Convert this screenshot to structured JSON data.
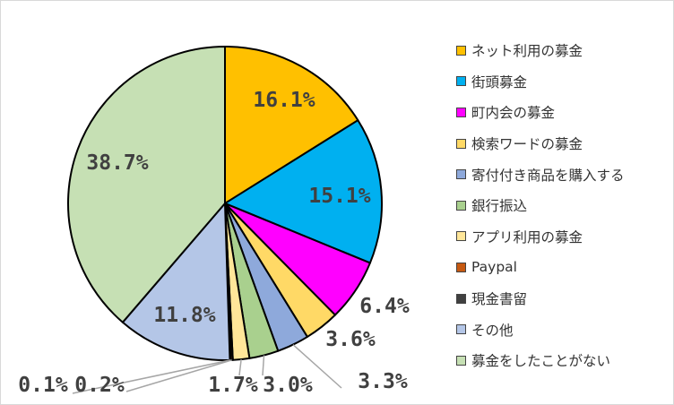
{
  "chart_data": {
    "type": "pie",
    "categories": [
      "ネット利用の募金",
      "街頭募金",
      "町内会の募金",
      "検索ワードの募金",
      "寄付付き商品を購入する",
      "銀行振込",
      "アプリ利用の募金",
      "Paypal",
      "現金書留",
      "その他",
      "募金をしたことがない"
    ],
    "values": [
      16.1,
      15.1,
      6.4,
      3.6,
      3.3,
      3.0,
      1.7,
      0.2,
      0.1,
      11.8,
      38.7
    ],
    "data_labels": [
      "16.1%",
      "15.1%",
      "6.4%",
      "3.6%",
      "3.3%",
      "3.0%",
      "1.7%",
      "0.2%",
      "0.1%",
      "11.8%",
      "38.7%"
    ],
    "colors": [
      "#FFC000",
      "#00B0F0",
      "#FF00FF",
      "#FFD966",
      "#8EA9DB",
      "#A9D08E",
      "#FFE699",
      "#C65911",
      "#404040",
      "#B4C6E7",
      "#C6E0B4"
    ],
    "legend_position": "right"
  }
}
